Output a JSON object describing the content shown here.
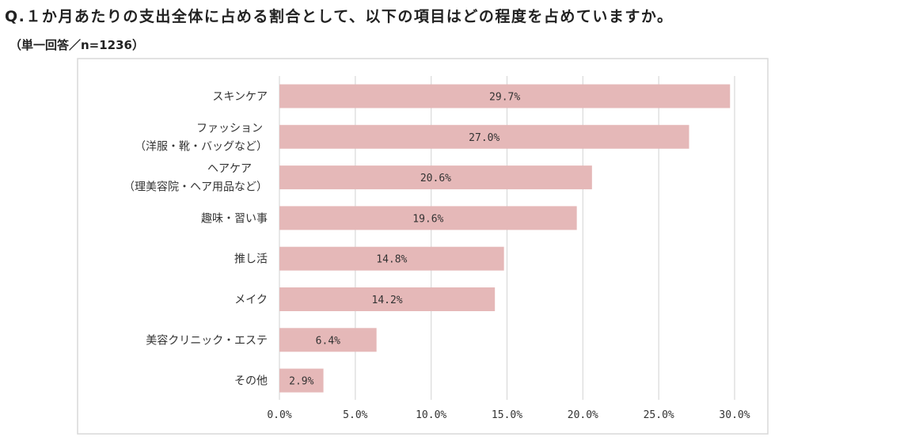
{
  "chart_data": {
    "type": "bar",
    "orientation": "horizontal",
    "title": "Q.１か月あたりの支出全体に占める割合として、以下の項目はどの程度を占めていますか。",
    "subtitle": "（単一回答／n=1236）",
    "categories": [
      [
        "スキンケア"
      ],
      [
        "ファッション",
        "（洋服・靴・バッグなど）"
      ],
      [
        "ヘアケア",
        "（理美容院・ヘア用品など）"
      ],
      [
        "趣味・習い事"
      ],
      [
        "推し活"
      ],
      [
        "メイク"
      ],
      [
        "美容クリニック・エステ"
      ],
      [
        "その他"
      ]
    ],
    "values": [
      29.7,
      27.0,
      20.6,
      19.6,
      14.8,
      14.2,
      6.4,
      2.9
    ],
    "value_labels": [
      "29.7%",
      "27.0%",
      "20.6%",
      "19.6%",
      "14.8%",
      "14.2%",
      "6.4%",
      "2.9%"
    ],
    "xlim": [
      0,
      30
    ],
    "xticks": [
      0,
      5,
      10,
      15,
      20,
      25,
      30
    ],
    "xtick_labels": [
      "0.0%",
      "5.0%",
      "10.0%",
      "15.0%",
      "20.0%",
      "25.0%",
      "30.0%"
    ],
    "grid": "vertical",
    "bar_color": "#e5b8b8",
    "grid_color": "#d9d9d9"
  }
}
